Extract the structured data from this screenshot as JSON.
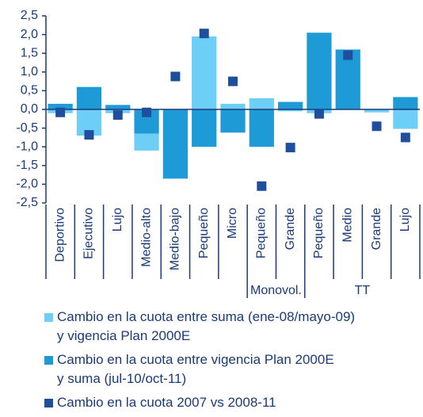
{
  "chart_data": {
    "type": "bar",
    "categories": [
      "Deportivo",
      "Ejecutivo",
      "Lujo",
      "Medio-alto",
      "Medio-bajo",
      "Pequeño",
      "Micro",
      "Pequeño",
      "Grande",
      "Pequeño",
      "Medio",
      "Grande",
      "Lujo"
    ],
    "groups": [
      {
        "name": "Monovol.",
        "from": 7,
        "to": 8
      },
      {
        "name": "TT",
        "from": 9,
        "to": 12
      }
    ],
    "series": [
      {
        "name": "Cambio en la cuota entre suma (ene-08/mayo-09)\ny vigencia Plan 2000E",
        "color": "#6dcff6",
        "mark": "bar",
        "values": [
          -0.1,
          -0.7,
          -0.1,
          -0.45,
          0,
          1.95,
          0.15,
          0.3,
          -0.05,
          -0.1,
          0,
          -0.08,
          -0.52
        ]
      },
      {
        "name": "Cambio en la cuota entre vigencia Plan 2000E\ny suma (jul-10/oct-11)",
        "color": "#1e9ad6",
        "mark": "bar",
        "values": [
          0.15,
          0.6,
          0.12,
          -0.65,
          -1.85,
          -1.0,
          -0.62,
          -1.0,
          0.2,
          2.05,
          1.6,
          0,
          0.33
        ]
      },
      {
        "name": "Cambio en la cuota 2007 vs 2008-11",
        "color": "#1f4e9c",
        "mark": "square",
        "values": [
          -0.08,
          -0.68,
          -0.15,
          -0.08,
          0.88,
          2.03,
          0.75,
          -2.05,
          -1.02,
          -0.12,
          1.45,
          -0.45,
          -0.75
        ]
      }
    ],
    "ylim": [
      -2.5,
      2.5
    ],
    "yticks": [
      {
        "value": 2.5,
        "label": "2,5"
      },
      {
        "value": 2,
        "label": "2,0"
      },
      {
        "value": 1.5,
        "label": "1,5"
      },
      {
        "value": 1,
        "label": "1,0"
      },
      {
        "value": 0.5,
        "label": "0,5"
      },
      {
        "value": 0,
        "label": "0,0"
      },
      {
        "value": -0.5,
        "label": "-0,5"
      },
      {
        "value": -1,
        "label": "-1,0"
      },
      {
        "value": -1.5,
        "label": "-1,5"
      },
      {
        "value": -2,
        "label": "-2,0"
      },
      {
        "value": -2.5,
        "label": "-2,5"
      }
    ]
  }
}
